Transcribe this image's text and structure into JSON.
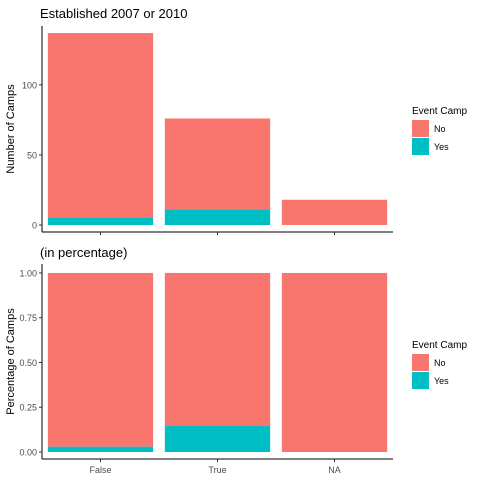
{
  "chart_data": [
    {
      "type": "bar",
      "stacked": true,
      "title": "Established 2007 or 2010",
      "ylabel": "Number of Camps",
      "xlabel": "",
      "categories": [
        "False",
        "True",
        "NA"
      ],
      "ylim": [
        0,
        142
      ],
      "yticks": [
        0,
        50,
        100
      ],
      "ytick_labels": [
        "0",
        "50",
        "100"
      ],
      "show_x_tick_labels": false,
      "series": [
        {
          "name": "Yes",
          "color": "#00BFC4",
          "values": [
            5,
            11,
            0
          ]
        },
        {
          "name": "No",
          "color": "#F8766D",
          "values": [
            132,
            65,
            18
          ]
        }
      ],
      "legend": {
        "title": "Event Camp",
        "entries": [
          "No",
          "Yes"
        ],
        "colors": [
          "#F8766D",
          "#00BFC4"
        ],
        "position": "right"
      },
      "grid": false
    },
    {
      "type": "bar",
      "stacked": true,
      "title": "(in percentage)",
      "ylabel": "Percentage of Camps",
      "xlabel": "",
      "categories": [
        "False",
        "True",
        "NA"
      ],
      "ylim": [
        0,
        1.05
      ],
      "yticks": [
        0,
        0.25,
        0.5,
        0.75,
        1.0
      ],
      "ytick_labels": [
        "0.00",
        "0.25",
        "0.50",
        "0.75",
        "1.00"
      ],
      "show_x_tick_labels": true,
      "series": [
        {
          "name": "Yes",
          "color": "#00BFC4",
          "values": [
            0.03,
            0.145,
            0
          ]
        },
        {
          "name": "No",
          "color": "#F8766D",
          "values": [
            0.97,
            0.855,
            1.0
          ]
        }
      ],
      "legend": {
        "title": "Event Camp",
        "entries": [
          "No",
          "Yes"
        ],
        "colors": [
          "#F8766D",
          "#00BFC4"
        ],
        "position": "right"
      },
      "grid": false
    }
  ]
}
